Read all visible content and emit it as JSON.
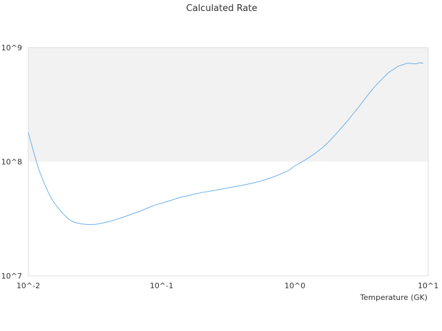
{
  "chart_data": {
    "type": "line",
    "title": "Calculated Rate",
    "xlabel": "Temperature (GK)",
    "ylabel": "",
    "x_scale": "log",
    "y_scale": "log",
    "xlim": [
      0.01,
      10
    ],
    "ylim": [
      10000000,
      1000000000
    ],
    "x_ticks": [
      "10^-2",
      "10^-1",
      "10^0",
      "10^1"
    ],
    "y_ticks": [
      "10^7",
      "10^8",
      "10^9"
    ],
    "grid": false,
    "shaded_band": {
      "y_from": 100000000,
      "y_to": 1000000000,
      "color": "#f2f2f2"
    },
    "series": [
      {
        "color": "#6aaee8",
        "x": [
          0.01,
          0.011,
          0.012,
          0.013,
          0.014,
          0.015,
          0.016,
          0.018,
          0.02,
          0.022,
          0.025,
          0.028,
          0.032,
          0.036,
          0.04,
          0.045,
          0.05,
          0.06,
          0.07,
          0.08,
          0.09,
          0.1,
          0.12,
          0.14,
          0.16,
          0.18,
          0.2,
          0.25,
          0.3,
          0.4,
          0.5,
          0.6,
          0.7,
          0.8,
          0.9,
          1.0,
          1.2,
          1.4,
          1.6,
          1.8,
          2.0,
          2.5,
          3.0,
          3.5,
          4.0,
          5.0,
          6.0,
          7.0,
          8.0,
          8.6,
          9.2
        ],
        "y": [
          180000000,
          120000000,
          85000000,
          67000000,
          55000000,
          47000000,
          42000000,
          35500000,
          31500000,
          29500000,
          28500000,
          28200000,
          28300000,
          29000000,
          29800000,
          31000000,
          32300000,
          34800000,
          37100000,
          39700000,
          41800000,
          43300000,
          46200000,
          49000000,
          50500000,
          52300000,
          53700000,
          56000000,
          58300000,
          62000000,
          65500000,
          69500000,
          74000000,
          79000000,
          84000000,
          92000000,
          104000000,
          117000000,
          132000000,
          150000000,
          171000000,
          230000000,
          300000000,
          380000000,
          460000000,
          600000000,
          690000000,
          730000000,
          720000000,
          735000000,
          730000000
        ]
      }
    ]
  }
}
